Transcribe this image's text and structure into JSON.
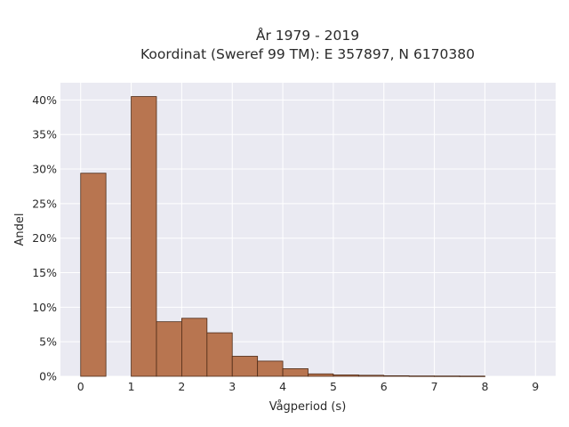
{
  "chart_data": {
    "type": "bar",
    "title": "År 1979 - 2019",
    "subtitle": "Koordinat (Sweref 99 TM): E 357897, N 6170380",
    "xlabel": "Vågperiod (s)",
    "ylabel": "Andel",
    "xlim": [
      -0.4,
      9.4
    ],
    "ylim": [
      0,
      42.5
    ],
    "x_ticks": [
      0,
      1,
      2,
      3,
      4,
      5,
      6,
      7,
      8,
      9
    ],
    "x_tick_labels": [
      "0",
      "1",
      "2",
      "3",
      "4",
      "5",
      "6",
      "7",
      "8",
      "9"
    ],
    "y_ticks": [
      0,
      5,
      10,
      15,
      20,
      25,
      30,
      35,
      40
    ],
    "y_tick_labels": [
      "0%",
      "5%",
      "10%",
      "15%",
      "20%",
      "25%",
      "30%",
      "35%",
      "40%"
    ],
    "bin_width": 0.5,
    "bins": [
      {
        "start": 0.0,
        "value": 29.4
      },
      {
        "start": 0.5,
        "value": 0.0
      },
      {
        "start": 1.0,
        "value": 40.5
      },
      {
        "start": 1.5,
        "value": 7.9
      },
      {
        "start": 2.0,
        "value": 8.4
      },
      {
        "start": 2.5,
        "value": 6.3
      },
      {
        "start": 3.0,
        "value": 2.9
      },
      {
        "start": 3.5,
        "value": 2.2
      },
      {
        "start": 4.0,
        "value": 1.1
      },
      {
        "start": 4.5,
        "value": 0.35
      },
      {
        "start": 5.0,
        "value": 0.2
      },
      {
        "start": 5.5,
        "value": 0.15
      },
      {
        "start": 6.0,
        "value": 0.08
      },
      {
        "start": 6.5,
        "value": 0.05
      },
      {
        "start": 7.0,
        "value": 0.04
      },
      {
        "start": 7.5,
        "value": 0.03
      }
    ],
    "grid": true,
    "legend": "none",
    "colors": {
      "bar_fill": "#b87550",
      "bar_edge": "#4d2a16",
      "plot_background": "#eaeaf2",
      "grid": "#ffffff"
    }
  }
}
